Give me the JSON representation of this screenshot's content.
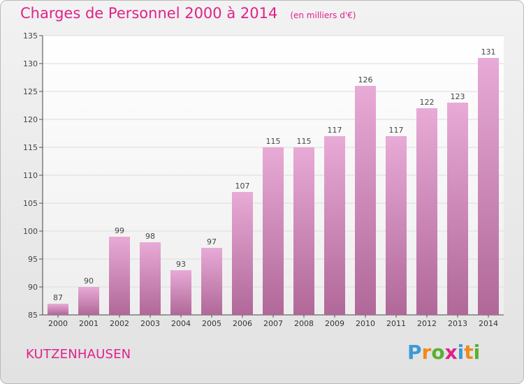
{
  "title": "Charges de Personnel 2000 à 2014",
  "subtitle": "(en milliers d'€)",
  "town": "KUTZENHAUSEN",
  "brand": {
    "letters": [
      "P",
      "r",
      "o",
      "x",
      "i",
      "t",
      "i"
    ],
    "colors": [
      "#3b9ad9",
      "#f08a1a",
      "#58b030",
      "#e0218a",
      "#3b9ad9",
      "#f08a1a",
      "#58b030"
    ]
  },
  "colors": {
    "bar_top": "#e8aad6",
    "bar_bottom": "#b06898",
    "accent": "#e0218a"
  },
  "chart_data": {
    "type": "bar",
    "categories": [
      "2000",
      "2001",
      "2002",
      "2003",
      "2004",
      "2005",
      "2006",
      "2007",
      "2008",
      "2009",
      "2010",
      "2011",
      "2012",
      "2013",
      "2014"
    ],
    "values": [
      87,
      90,
      99,
      98,
      93,
      97,
      107,
      115,
      115,
      117,
      126,
      117,
      122,
      123,
      131
    ],
    "title": "Charges de Personnel 2000 à 2014",
    "subtitle": "(en milliers d'€)",
    "ylim": [
      85,
      135
    ],
    "yticks": [
      85,
      90,
      95,
      100,
      105,
      110,
      115,
      120,
      125,
      130,
      135
    ],
    "grid": true
  }
}
